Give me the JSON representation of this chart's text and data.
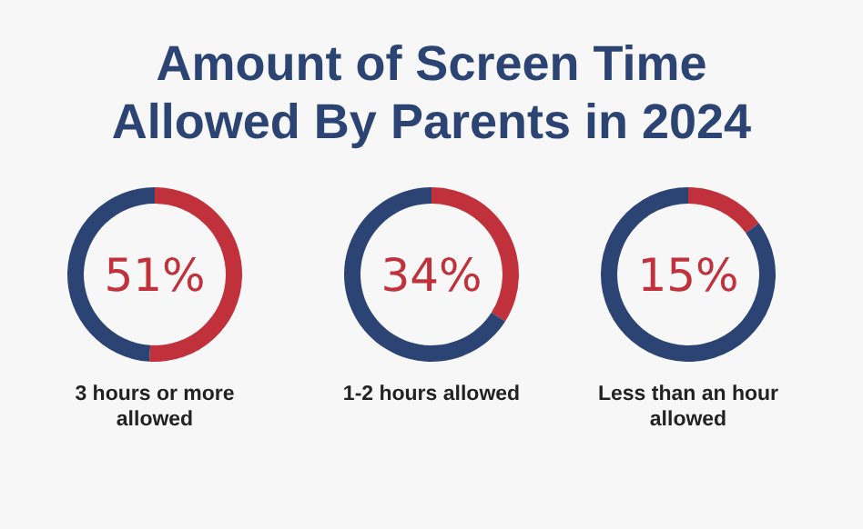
{
  "chart_data": [
    {
      "type": "donut",
      "title": "Amount of Screen Time Allowed By Parents in 2024",
      "xlabel": "3 hours or more allowed",
      "categories": [
        null,
        null
      ],
      "values": [
        51,
        49
      ],
      "colors": [
        "#c1313b",
        "#2c4473"
      ],
      "annotations": [
        "51%"
      ]
    },
    {
      "type": "donut",
      "xlabel": "1-2 hours allowed",
      "categories": [
        null,
        null
      ],
      "values": [
        34,
        66
      ],
      "colors": [
        "#c1313b",
        "#2c4473"
      ],
      "annotations": [
        "34%"
      ]
    },
    {
      "type": "donut",
      "xlabel": "Less than an hour allowed",
      "categories": [
        null,
        null
      ],
      "values": [
        15,
        85
      ],
      "colors": [
        "#c1313b",
        "#2c4473"
      ],
      "annotations": [
        "15%"
      ]
    }
  ]
}
